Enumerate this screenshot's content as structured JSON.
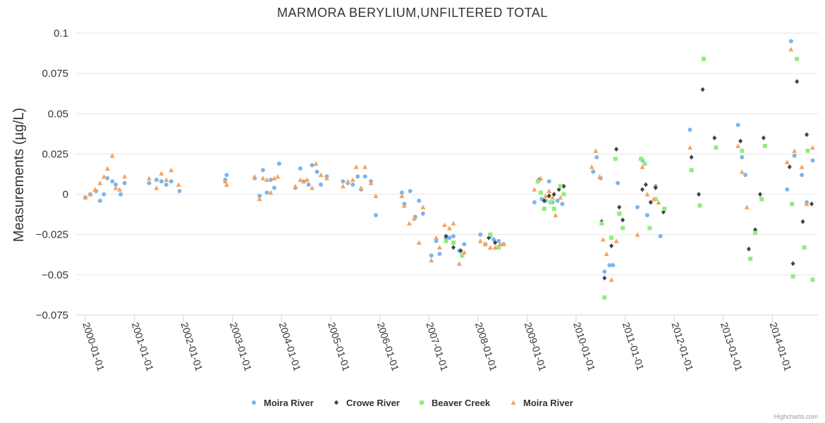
{
  "chart_data": {
    "type": "scatter",
    "title": "MARMORA BERYLIUM,UNFILTERED TOTAL",
    "ylabel": "Measurements (µg/L)",
    "xlabel": "",
    "ylim": [
      -0.075,
      0.1
    ],
    "yticks": [
      -0.075,
      -0.05,
      -0.025,
      0,
      0.025,
      0.05,
      0.075,
      0.1
    ],
    "ytick_labels": [
      "−0.075",
      "−0.05",
      "−0.025",
      "0",
      "0.025",
      "0.05",
      "0.075",
      "0.1"
    ],
    "xlim": [
      2000,
      2014.85
    ],
    "xticks": [
      2000,
      2001,
      2002,
      2003,
      2004,
      2005,
      2006,
      2007,
      2008,
      2009,
      2010,
      2011,
      2012,
      2013,
      2014
    ],
    "xtick_labels": [
      "2000-01-01",
      "2001-01-01",
      "2002-01-01",
      "2003-01-01",
      "2004-01-01",
      "2005-01-01",
      "2006-01-01",
      "2007-01-01",
      "2008-01-01",
      "2009-01-01",
      "2010-01-01",
      "2011-01-01",
      "2012-01-01",
      "2013-01-01",
      "2014-01-01"
    ],
    "legend_position": "bottom-center",
    "grid": true,
    "series": [
      {
        "name": "Moira River",
        "marker": "circle",
        "color": "#7cb5ec",
        "points": [
          [
            2000.0,
            -0.002
          ],
          [
            2000.1,
            0.0
          ],
          [
            2000.22,
            0.002
          ],
          [
            2000.3,
            -0.004
          ],
          [
            2000.38,
            0.0
          ],
          [
            2000.45,
            0.01
          ],
          [
            2000.55,
            0.008
          ],
          [
            2000.62,
            0.006
          ],
          [
            2000.72,
            0.0
          ],
          [
            2000.8,
            0.007
          ],
          [
            2001.3,
            0.007
          ],
          [
            2001.45,
            0.009
          ],
          [
            2001.55,
            0.008
          ],
          [
            2001.65,
            0.006
          ],
          [
            2001.75,
            0.008
          ],
          [
            2001.92,
            0.002
          ],
          [
            2002.85,
            0.009
          ],
          [
            2002.88,
            0.012
          ],
          [
            2003.45,
            0.01
          ],
          [
            2003.55,
            -0.001
          ],
          [
            2003.62,
            0.015
          ],
          [
            2003.7,
            0.001
          ],
          [
            2003.78,
            0.009
          ],
          [
            2003.85,
            0.004
          ],
          [
            2003.95,
            0.019
          ],
          [
            2004.28,
            0.004
          ],
          [
            2004.38,
            0.016
          ],
          [
            2004.45,
            0.008
          ],
          [
            2004.55,
            0.006
          ],
          [
            2004.62,
            0.018
          ],
          [
            2004.72,
            0.014
          ],
          [
            2004.8,
            0.006
          ],
          [
            2004.92,
            0.011
          ],
          [
            2005.25,
            0.008
          ],
          [
            2005.35,
            0.007
          ],
          [
            2005.45,
            0.006
          ],
          [
            2005.55,
            0.011
          ],
          [
            2005.62,
            0.003
          ],
          [
            2005.7,
            0.011
          ],
          [
            2005.82,
            0.008
          ],
          [
            2005.92,
            -0.013
          ],
          [
            2006.45,
            0.001
          ],
          [
            2006.5,
            -0.006
          ],
          [
            2006.62,
            0.002
          ],
          [
            2006.72,
            -0.014
          ],
          [
            2006.8,
            -0.004
          ],
          [
            2006.88,
            -0.012
          ],
          [
            2007.05,
            -0.038
          ],
          [
            2007.15,
            -0.029
          ],
          [
            2007.22,
            -0.037
          ],
          [
            2007.35,
            -0.027
          ],
          [
            2007.42,
            -0.027
          ],
          [
            2007.5,
            -0.026
          ],
          [
            2007.62,
            -0.035
          ],
          [
            2007.72,
            -0.031
          ],
          [
            2008.05,
            -0.025
          ],
          [
            2008.15,
            -0.031
          ],
          [
            2008.25,
            -0.026
          ],
          [
            2008.32,
            -0.028
          ],
          [
            2008.42,
            -0.029
          ],
          [
            2008.52,
            -0.031
          ],
          [
            2009.15,
            -0.005
          ],
          [
            2009.3,
            -0.003
          ],
          [
            2009.38,
            -0.004
          ],
          [
            2009.45,
            0.008
          ],
          [
            2009.52,
            -0.005
          ],
          [
            2009.62,
            -0.004
          ],
          [
            2009.72,
            -0.006
          ],
          [
            2010.35,
            0.014
          ],
          [
            2010.42,
            0.023
          ],
          [
            2010.5,
            0.01
          ],
          [
            2010.58,
            -0.048
          ],
          [
            2010.68,
            -0.044
          ],
          [
            2010.75,
            -0.044
          ],
          [
            2010.85,
            0.007
          ],
          [
            2011.25,
            -0.008
          ],
          [
            2011.35,
            0.021
          ],
          [
            2011.45,
            -0.013
          ],
          [
            2011.62,
            0.005
          ],
          [
            2011.72,
            -0.026
          ],
          [
            2012.32,
            0.04
          ],
          [
            2013.3,
            0.043
          ],
          [
            2013.38,
            0.023
          ],
          [
            2013.45,
            0.012
          ],
          [
            2014.3,
            0.003
          ],
          [
            2014.38,
            0.095
          ],
          [
            2014.45,
            0.024
          ],
          [
            2014.6,
            0.012
          ],
          [
            2014.7,
            -0.005
          ],
          [
            2014.82,
            0.021
          ]
        ]
      },
      {
        "name": "Crowe River",
        "marker": "diamond",
        "color": "#434348",
        "points": [
          [
            2007.35,
            -0.026
          ],
          [
            2007.5,
            -0.033
          ],
          [
            2007.65,
            -0.035
          ],
          [
            2008.22,
            -0.027
          ],
          [
            2008.35,
            -0.03
          ],
          [
            2009.25,
            0.009
          ],
          [
            2009.35,
            -0.004
          ],
          [
            2009.45,
            -0.001
          ],
          [
            2009.55,
            0.0
          ],
          [
            2009.65,
            0.003
          ],
          [
            2009.75,
            0.005
          ],
          [
            2010.52,
            -0.017
          ],
          [
            2010.58,
            -0.052
          ],
          [
            2010.72,
            -0.032
          ],
          [
            2010.82,
            0.028
          ],
          [
            2010.88,
            -0.008
          ],
          [
            2010.95,
            -0.016
          ],
          [
            2011.35,
            0.003
          ],
          [
            2011.42,
            0.006
          ],
          [
            2011.52,
            -0.005
          ],
          [
            2011.62,
            0.004
          ],
          [
            2011.78,
            -0.011
          ],
          [
            2012.35,
            0.023
          ],
          [
            2012.5,
            0.0
          ],
          [
            2012.58,
            0.065
          ],
          [
            2012.82,
            0.035
          ],
          [
            2013.35,
            0.033
          ],
          [
            2013.52,
            -0.034
          ],
          [
            2013.65,
            -0.022
          ],
          [
            2013.75,
            0.0
          ],
          [
            2013.82,
            0.035
          ],
          [
            2014.35,
            0.017
          ],
          [
            2014.42,
            -0.043
          ],
          [
            2014.5,
            0.07
          ],
          [
            2014.62,
            -0.017
          ],
          [
            2014.7,
            0.037
          ],
          [
            2014.8,
            -0.006
          ]
        ]
      },
      {
        "name": "Beaver Creek",
        "marker": "square",
        "color": "#90ed7d",
        "points": [
          [
            2007.35,
            -0.029
          ],
          [
            2007.5,
            -0.03
          ],
          [
            2007.68,
            -0.038
          ],
          [
            2008.25,
            -0.025
          ],
          [
            2008.42,
            -0.033
          ],
          [
            2009.22,
            0.008
          ],
          [
            2009.28,
            0.001
          ],
          [
            2009.35,
            -0.009
          ],
          [
            2009.48,
            -0.005
          ],
          [
            2009.55,
            -0.009
          ],
          [
            2009.68,
            0.005
          ],
          [
            2009.75,
            0.0
          ],
          [
            2010.52,
            -0.018
          ],
          [
            2010.58,
            -0.064
          ],
          [
            2010.72,
            -0.027
          ],
          [
            2010.8,
            0.022
          ],
          [
            2010.88,
            -0.012
          ],
          [
            2010.95,
            -0.021
          ],
          [
            2011.32,
            0.022
          ],
          [
            2011.4,
            0.019
          ],
          [
            2011.5,
            -0.021
          ],
          [
            2011.62,
            -0.003
          ],
          [
            2011.8,
            -0.009
          ],
          [
            2012.35,
            0.015
          ],
          [
            2012.52,
            -0.007
          ],
          [
            2012.6,
            0.084
          ],
          [
            2012.85,
            0.029
          ],
          [
            2013.38,
            0.027
          ],
          [
            2013.55,
            -0.04
          ],
          [
            2013.65,
            -0.024
          ],
          [
            2013.78,
            -0.003
          ],
          [
            2013.85,
            0.03
          ],
          [
            2014.4,
            -0.006
          ],
          [
            2014.42,
            -0.051
          ],
          [
            2014.5,
            0.084
          ],
          [
            2014.65,
            -0.033
          ],
          [
            2014.72,
            0.027
          ],
          [
            2014.82,
            -0.053
          ]
        ]
      },
      {
        "name": "Moira River",
        "marker": "triangle",
        "color": "#f7a35c",
        "points": [
          [
            2000.0,
            -0.002
          ],
          [
            2000.1,
            0.0
          ],
          [
            2000.2,
            0.003
          ],
          [
            2000.3,
            0.007
          ],
          [
            2000.38,
            0.011
          ],
          [
            2000.45,
            0.016
          ],
          [
            2000.55,
            0.024
          ],
          [
            2000.62,
            0.004
          ],
          [
            2000.7,
            0.003
          ],
          [
            2000.8,
            0.011
          ],
          [
            2001.3,
            0.01
          ],
          [
            2001.45,
            0.004
          ],
          [
            2001.55,
            0.013
          ],
          [
            2001.65,
            0.009
          ],
          [
            2001.75,
            0.015
          ],
          [
            2001.9,
            0.006
          ],
          [
            2002.85,
            0.008
          ],
          [
            2002.88,
            0.006
          ],
          [
            2003.45,
            0.011
          ],
          [
            2003.55,
            -0.003
          ],
          [
            2003.62,
            0.01
          ],
          [
            2003.7,
            0.009
          ],
          [
            2003.78,
            0.001
          ],
          [
            2003.85,
            0.01
          ],
          [
            2003.92,
            0.011
          ],
          [
            2004.28,
            0.005
          ],
          [
            2004.38,
            0.009
          ],
          [
            2004.45,
            0.008
          ],
          [
            2004.52,
            0.009
          ],
          [
            2004.62,
            0.004
          ],
          [
            2004.7,
            0.019
          ],
          [
            2004.8,
            0.012
          ],
          [
            2004.92,
            0.01
          ],
          [
            2005.25,
            0.005
          ],
          [
            2005.35,
            0.008
          ],
          [
            2005.45,
            0.009
          ],
          [
            2005.52,
            0.017
          ],
          [
            2005.62,
            0.004
          ],
          [
            2005.7,
            0.017
          ],
          [
            2005.82,
            0.007
          ],
          [
            2005.92,
            -0.001
          ],
          [
            2006.45,
            -0.001
          ],
          [
            2006.5,
            -0.007
          ],
          [
            2006.6,
            -0.018
          ],
          [
            2006.7,
            -0.015
          ],
          [
            2006.8,
            -0.03
          ],
          [
            2006.88,
            -0.008
          ],
          [
            2007.05,
            -0.041
          ],
          [
            2007.15,
            -0.027
          ],
          [
            2007.22,
            -0.033
          ],
          [
            2007.32,
            -0.019
          ],
          [
            2007.42,
            -0.021
          ],
          [
            2007.5,
            -0.018
          ],
          [
            2007.62,
            -0.043
          ],
          [
            2007.72,
            -0.036
          ],
          [
            2008.05,
            -0.029
          ],
          [
            2008.15,
            -0.031
          ],
          [
            2008.25,
            -0.033
          ],
          [
            2008.35,
            -0.033
          ],
          [
            2008.45,
            -0.031
          ],
          [
            2008.52,
            -0.031
          ],
          [
            2009.15,
            0.003
          ],
          [
            2009.28,
            0.01
          ],
          [
            2009.38,
            -0.001
          ],
          [
            2009.45,
            0.002
          ],
          [
            2009.52,
            -0.002
          ],
          [
            2009.58,
            -0.013
          ],
          [
            2009.68,
            -0.002
          ],
          [
            2010.32,
            0.017
          ],
          [
            2010.4,
            0.027
          ],
          [
            2010.48,
            0.011
          ],
          [
            2010.55,
            -0.028
          ],
          [
            2010.62,
            -0.037
          ],
          [
            2010.72,
            -0.053
          ],
          [
            2010.82,
            -0.029
          ],
          [
            2011.25,
            -0.025
          ],
          [
            2011.35,
            0.017
          ],
          [
            2011.45,
            0.0
          ],
          [
            2011.58,
            -0.003
          ],
          [
            2011.68,
            -0.005
          ],
          [
            2012.32,
            0.029
          ],
          [
            2013.3,
            0.03
          ],
          [
            2013.38,
            0.014
          ],
          [
            2013.48,
            -0.008
          ],
          [
            2014.3,
            0.02
          ],
          [
            2014.38,
            0.09
          ],
          [
            2014.45,
            0.027
          ],
          [
            2014.6,
            0.017
          ],
          [
            2014.7,
            -0.006
          ],
          [
            2014.82,
            0.029
          ]
        ]
      }
    ]
  },
  "credits": "Highcharts.com"
}
